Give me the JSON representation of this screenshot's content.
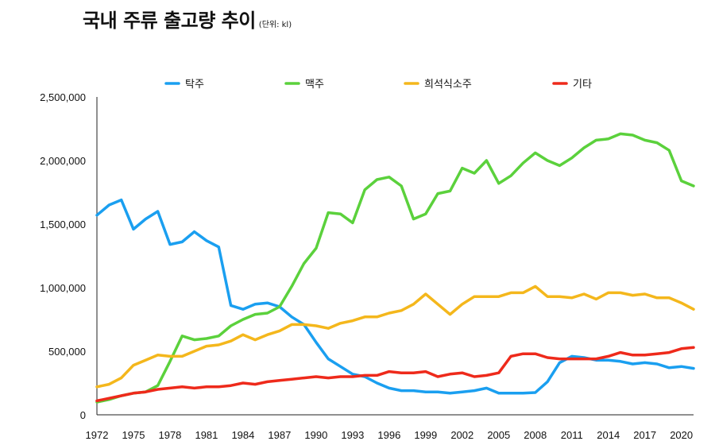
{
  "header": {
    "title": "국내 주류 출고량 추이",
    "unit": "(단위: kl)"
  },
  "chart_data": {
    "type": "line",
    "title": "국내 주류 출고량 추이",
    "subtitle": "(단위: kl)",
    "xlabel": "",
    "ylabel": "",
    "ylim": [
      0,
      2500000
    ],
    "xlim": [
      1972,
      2021
    ],
    "y_ticks": [
      "0",
      "500,000",
      "1,000,000",
      "1,500,000",
      "2,000,000",
      "2,500,000"
    ],
    "y_tick_values": [
      0,
      500000,
      1000000,
      1500000,
      2000000,
      2500000
    ],
    "x_ticks": [
      "1972",
      "1975",
      "1978",
      "1981",
      "1984",
      "1987",
      "1990",
      "1993",
      "1996",
      "1999",
      "2002",
      "2005",
      "2008",
      "2011",
      "2014",
      "2017",
      "2020"
    ],
    "grid": false,
    "legend_position": "top",
    "x": [
      1972,
      1973,
      1974,
      1975,
      1976,
      1977,
      1978,
      1979,
      1980,
      1981,
      1982,
      1983,
      1984,
      1985,
      1986,
      1987,
      1988,
      1989,
      1990,
      1991,
      1992,
      1993,
      1994,
      1995,
      1996,
      1997,
      1998,
      1999,
      2000,
      2001,
      2002,
      2003,
      2004,
      2005,
      2006,
      2007,
      2008,
      2009,
      2010,
      2011,
      2012,
      2013,
      2014,
      2015,
      2016,
      2017,
      2018,
      2019,
      2020,
      2021
    ],
    "series": [
      {
        "name": "탁주",
        "color": "#1a9ff0",
        "values": [
          1570000,
          1650000,
          1690000,
          1460000,
          1540000,
          1600000,
          1340000,
          1360000,
          1440000,
          1370000,
          1320000,
          860000,
          830000,
          870000,
          880000,
          850000,
          770000,
          710000,
          570000,
          440000,
          380000,
          320000,
          300000,
          250000,
          210000,
          190000,
          190000,
          180000,
          180000,
          170000,
          180000,
          190000,
          210000,
          170000,
          170000,
          170000,
          175000,
          260000,
          410000,
          460000,
          450000,
          430000,
          430000,
          420000,
          400000,
          410000,
          400000,
          370000,
          380000,
          365000
        ]
      },
      {
        "name": "맥주",
        "color": "#5bd13c",
        "values": [
          100000,
          120000,
          150000,
          170000,
          180000,
          230000,
          420000,
          620000,
          590000,
          600000,
          620000,
          700000,
          750000,
          790000,
          800000,
          850000,
          1010000,
          1190000,
          1310000,
          1590000,
          1580000,
          1510000,
          1770000,
          1850000,
          1870000,
          1800000,
          1540000,
          1580000,
          1740000,
          1760000,
          1940000,
          1900000,
          2000000,
          1820000,
          1880000,
          1980000,
          2060000,
          2000000,
          1960000,
          2020000,
          2100000,
          2160000,
          2170000,
          2210000,
          2200000,
          2160000,
          2140000,
          2080000,
          1840000,
          1800000
        ]
      },
      {
        "name": "희석식소주",
        "color": "#f4b71c",
        "values": [
          220000,
          240000,
          290000,
          390000,
          430000,
          470000,
          460000,
          460000,
          500000,
          540000,
          550000,
          580000,
          630000,
          590000,
          630000,
          660000,
          710000,
          710000,
          700000,
          680000,
          720000,
          740000,
          770000,
          770000,
          800000,
          820000,
          870000,
          950000,
          870000,
          790000,
          870000,
          930000,
          930000,
          930000,
          960000,
          960000,
          1010000,
          930000,
          930000,
          920000,
          950000,
          910000,
          960000,
          960000,
          940000,
          950000,
          920000,
          920000,
          880000,
          830000
        ]
      },
      {
        "name": "기타",
        "color": "#ee2a1b",
        "values": [
          110000,
          130000,
          150000,
          170000,
          180000,
          200000,
          210000,
          220000,
          210000,
          220000,
          220000,
          230000,
          250000,
          240000,
          260000,
          270000,
          280000,
          290000,
          300000,
          290000,
          300000,
          300000,
          310000,
          310000,
          340000,
          330000,
          330000,
          340000,
          300000,
          320000,
          330000,
          300000,
          310000,
          330000,
          460000,
          480000,
          480000,
          450000,
          440000,
          440000,
          440000,
          440000,
          460000,
          490000,
          470000,
          470000,
          480000,
          490000,
          520000,
          530000
        ]
      }
    ]
  }
}
